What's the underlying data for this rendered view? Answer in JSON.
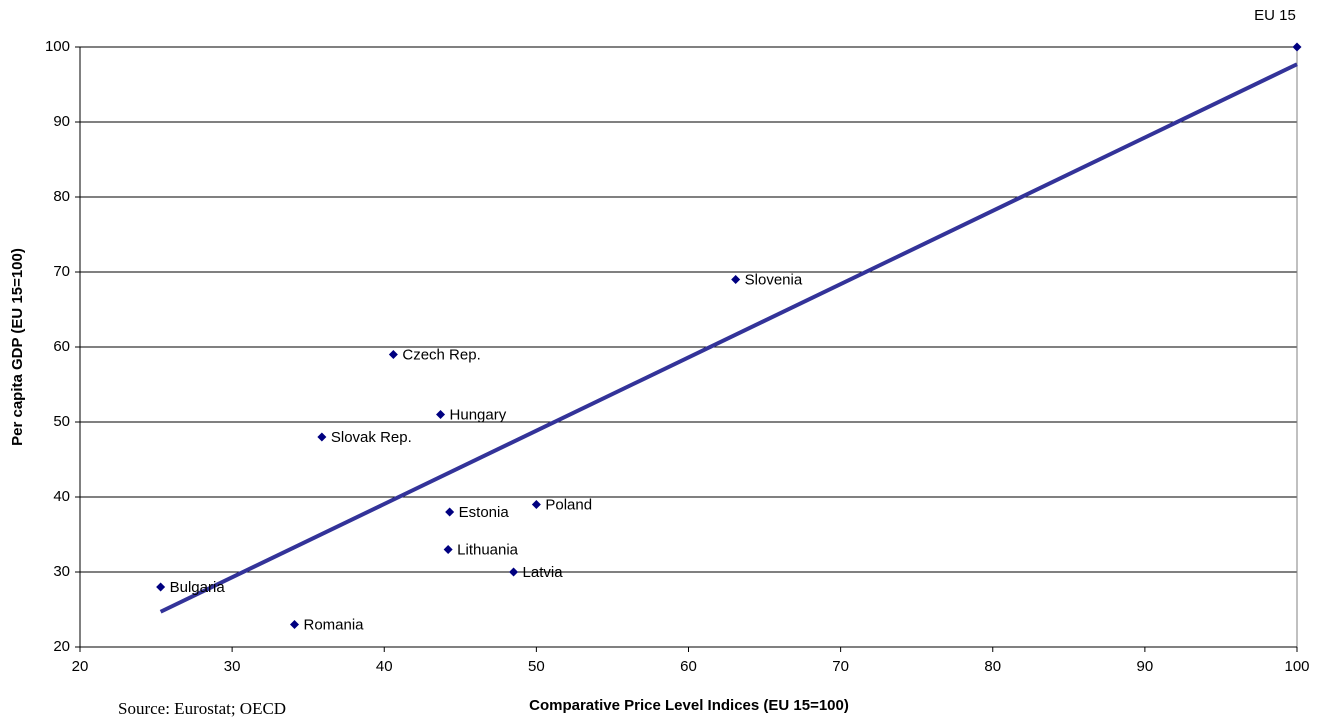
{
  "chart_data": {
    "type": "scatter",
    "x_label": "Comparative Price Level Indices (EU 15=100)",
    "y_label": "Per capita GDP (EU 15=100)",
    "source": "Source: Eurostat; OECD",
    "series": [
      {
        "color": "#000080",
        "labels": [
          "Bulgaria",
          "Romania",
          "Slovak Rep.",
          "Czech Rep.",
          "Hungary",
          "Estonia",
          "Lithuania",
          "Latvia",
          "Poland",
          "Slovenia",
          "EU 15"
        ],
        "x": [
          25.3,
          34.1,
          35.9,
          40.6,
          43.7,
          44.3,
          44.2,
          48.5,
          50.0,
          63.1,
          100
        ],
        "values": [
          28,
          23,
          48,
          59,
          51,
          38,
          33,
          30,
          39,
          69,
          100
        ]
      }
    ],
    "trendline": {
      "color": "#333399",
      "x": [
        25.3,
        100
      ],
      "values": [
        24.7,
        97.7
      ]
    },
    "xlim": [
      20,
      100
    ],
    "xticks": [
      20,
      30,
      40,
      50,
      60,
      70,
      80,
      90,
      100
    ],
    "ylim": [
      20,
      100
    ],
    "yticks": [
      20,
      30,
      40,
      50,
      60,
      70,
      80,
      90,
      100
    ],
    "grid": true
  }
}
